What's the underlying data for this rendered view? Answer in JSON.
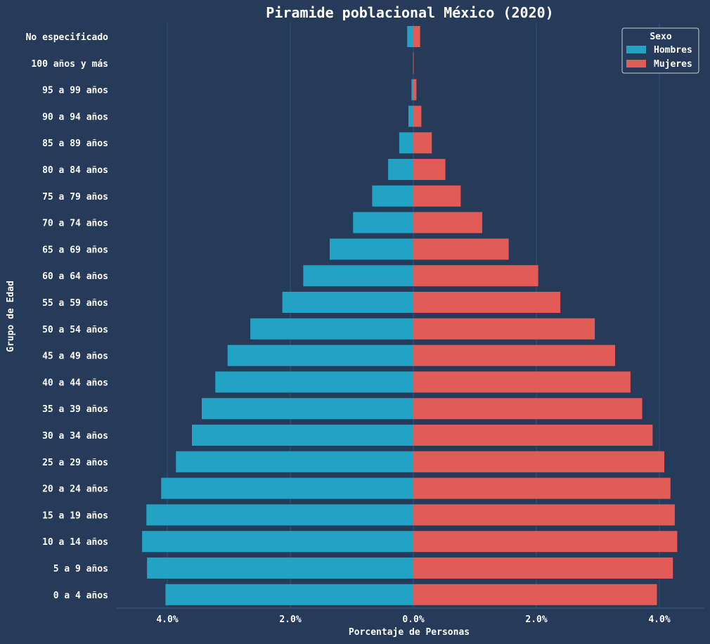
{
  "chart_data": {
    "type": "bar",
    "orientation": "horizontal-diverging",
    "title": "Piramide poblacional México (2020)",
    "xlabel": "Porcentaje de Personas",
    "ylabel": "Grupo de Edad",
    "xlim": [
      -4.8,
      4.8
    ],
    "x_ticks": [
      -4,
      -2,
      0,
      2,
      4
    ],
    "x_tick_labels": [
      "4.0%",
      "2.0%",
      "0.0%",
      "2.0%",
      "4.0%"
    ],
    "grid": "vertical",
    "legend": {
      "title": "Sexo",
      "position": "top-right"
    },
    "categories": [
      "No especificado",
      "100 años y más",
      "95 a 99 años",
      "90 a 94 años",
      "85 a 89 años",
      "80 a 84 años",
      "75 a 79 años",
      "70 a 74 años",
      "65 a 69 años",
      "60 a 64 años",
      "55 a 59 años",
      "50 a 54 años",
      "45 a 49 años",
      "40 a 44 años",
      "35 a 39 años",
      "30 a 34 años",
      "25 a 29 años",
      "20 a 24 años",
      "15 a 19 años",
      "10 a 14 años",
      "5 a 9 años",
      "0 a 4 años"
    ],
    "series": [
      {
        "name": "Hombres",
        "color": "#22a3c3",
        "values": [
          0.1,
          0.005,
          0.03,
          0.08,
          0.23,
          0.41,
          0.67,
          0.98,
          1.36,
          1.79,
          2.13,
          2.65,
          3.02,
          3.22,
          3.44,
          3.6,
          3.86,
          4.1,
          4.34,
          4.41,
          4.33,
          4.03
        ]
      },
      {
        "name": "Mujeres",
        "color": "#e15c56",
        "values": [
          0.11,
          0.005,
          0.05,
          0.13,
          0.3,
          0.52,
          0.77,
          1.12,
          1.55,
          2.03,
          2.39,
          2.95,
          3.28,
          3.53,
          3.72,
          3.89,
          4.08,
          4.18,
          4.25,
          4.29,
          4.22,
          3.96
        ]
      }
    ]
  }
}
